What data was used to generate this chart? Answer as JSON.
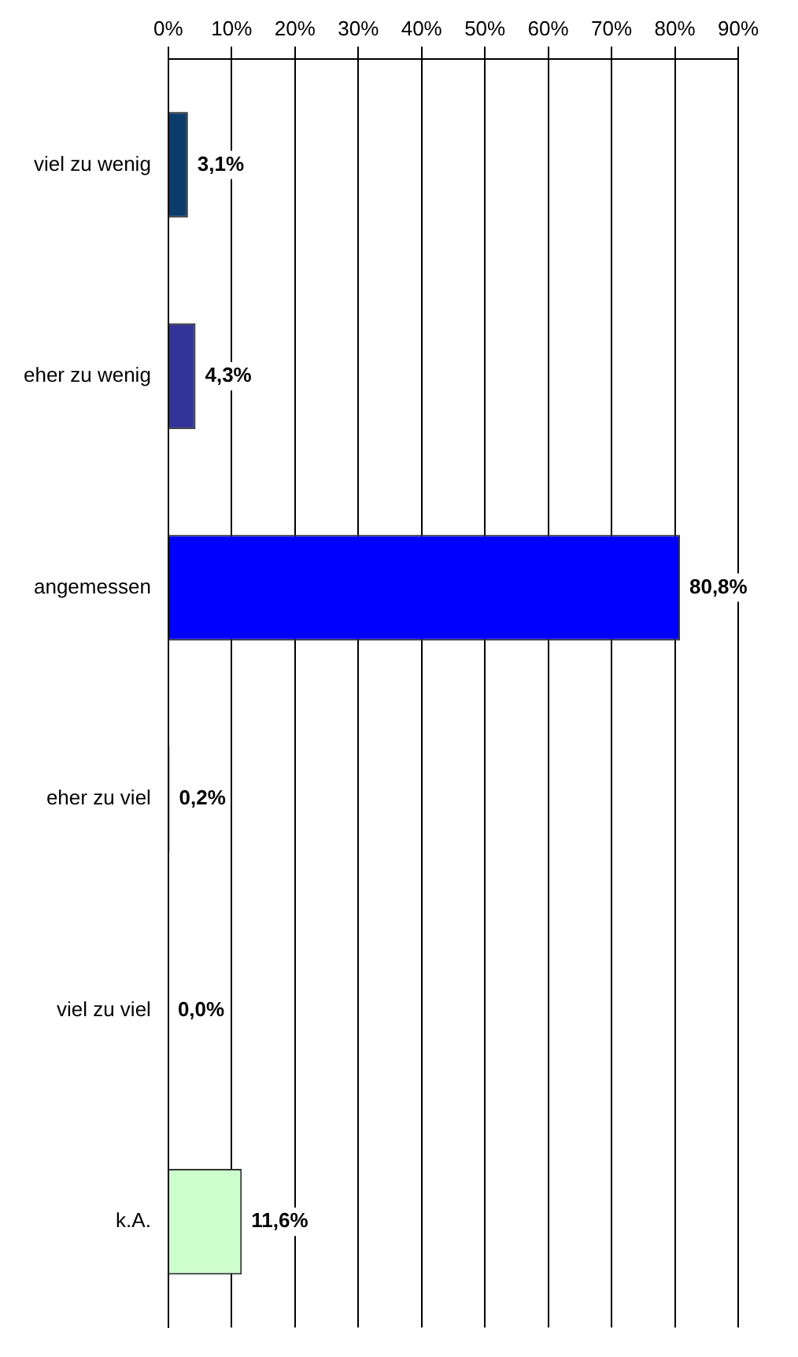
{
  "chart_data": {
    "type": "bar",
    "orientation": "horizontal",
    "categories": [
      "viel zu wenig",
      "eher zu wenig",
      "angemessen",
      "eher zu viel",
      "viel zu viel",
      "k.A."
    ],
    "values": [
      3.1,
      4.3,
      80.8,
      0.2,
      0.0,
      11.6
    ],
    "colors": [
      "#0b3b6b",
      "#333399",
      "#0000ff",
      "#660066",
      "#9f85cf",
      "#ccffcc"
    ],
    "value_labels": [
      "3,1%",
      "4,3%",
      "80,8%",
      "0,2%",
      "0,0%",
      "11,6%"
    ],
    "xlim": [
      0,
      90
    ],
    "xticks": [
      {
        "value": 0,
        "label": "0%"
      },
      {
        "value": 10,
        "label": "10%"
      },
      {
        "value": 20,
        "label": "20%"
      },
      {
        "value": 30,
        "label": "30%"
      },
      {
        "value": 40,
        "label": "40%"
      },
      {
        "value": 50,
        "label": "50%"
      },
      {
        "value": 60,
        "label": "60%"
      },
      {
        "value": 70,
        "label": "70%"
      },
      {
        "value": 80,
        "label": "80%"
      },
      {
        "value": 90,
        "label": "90%"
      }
    ],
    "grid": "x"
  }
}
